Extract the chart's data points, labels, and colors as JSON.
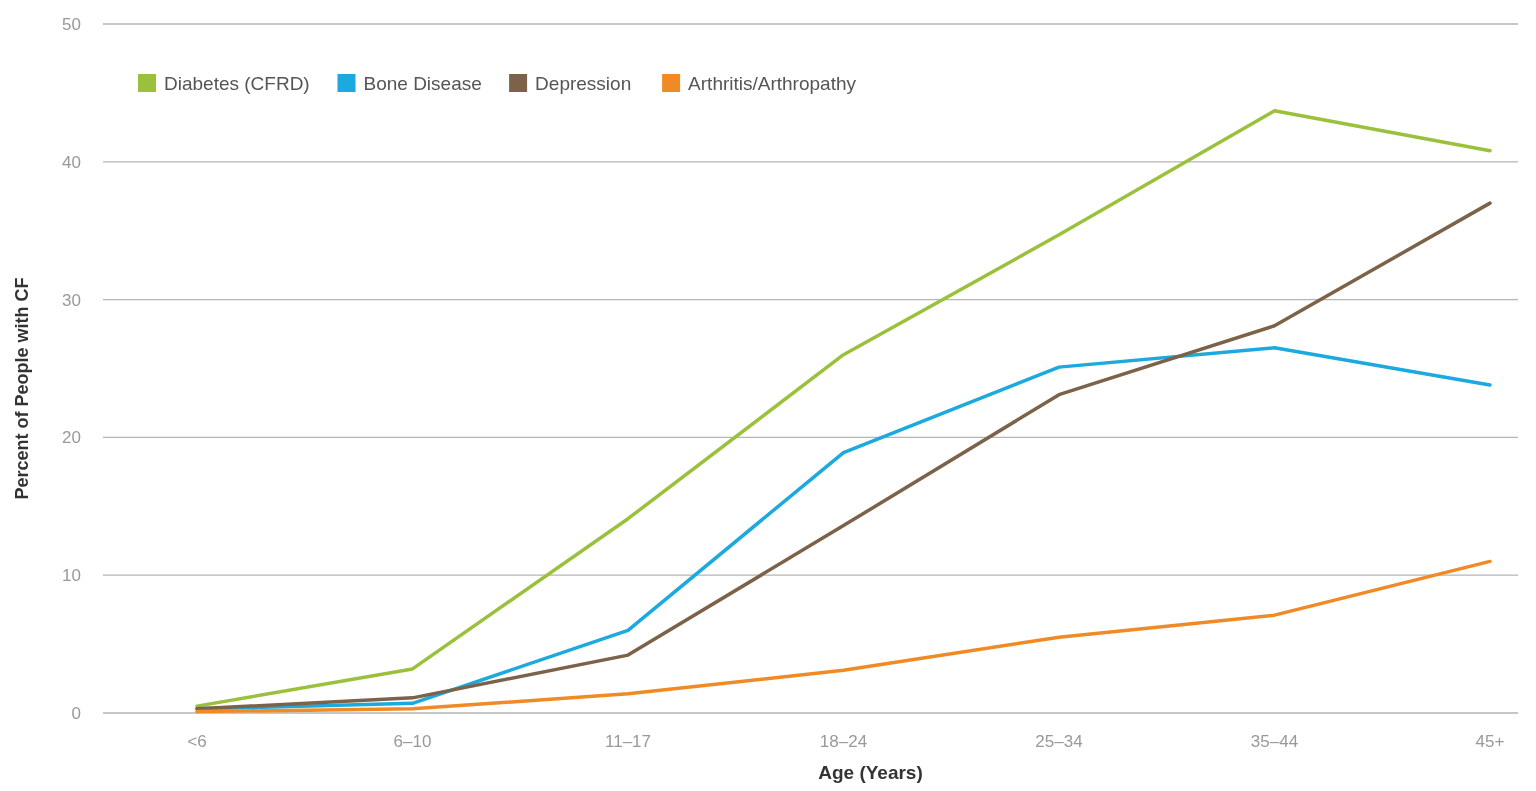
{
  "chart_data": {
    "type": "line",
    "xlabel": "Age (Years)",
    "ylabel": "Percent of People with CF",
    "categories": [
      "<6",
      "6–10",
      "11–17",
      "18–24",
      "25–34",
      "35–44",
      "45+"
    ],
    "series": [
      {
        "name": "Diabetes (CFRD)",
        "color": "#9bc13c",
        "values": [
          0.5,
          3.2,
          14.1,
          26.0,
          34.7,
          43.7,
          40.8
        ]
      },
      {
        "name": "Bone Disease",
        "color": "#1ba9df",
        "values": [
          0.3,
          0.7,
          6.0,
          18.9,
          25.1,
          26.5,
          23.8
        ]
      },
      {
        "name": "Depression",
        "color": "#7b6248",
        "values": [
          0.3,
          1.1,
          4.2,
          13.6,
          23.1,
          28.1,
          37.0
        ]
      },
      {
        "name": "Arthritis/Arthropathy",
        "color": "#f08a24",
        "values": [
          0.1,
          0.3,
          1.4,
          3.1,
          5.5,
          7.1,
          11.0
        ]
      }
    ],
    "ylim": [
      0,
      50
    ],
    "yticks": [
      0,
      10,
      20,
      30,
      40,
      50
    ],
    "grid": "y",
    "legend": "top left",
    "marker": "none",
    "line_style": "solid"
  }
}
